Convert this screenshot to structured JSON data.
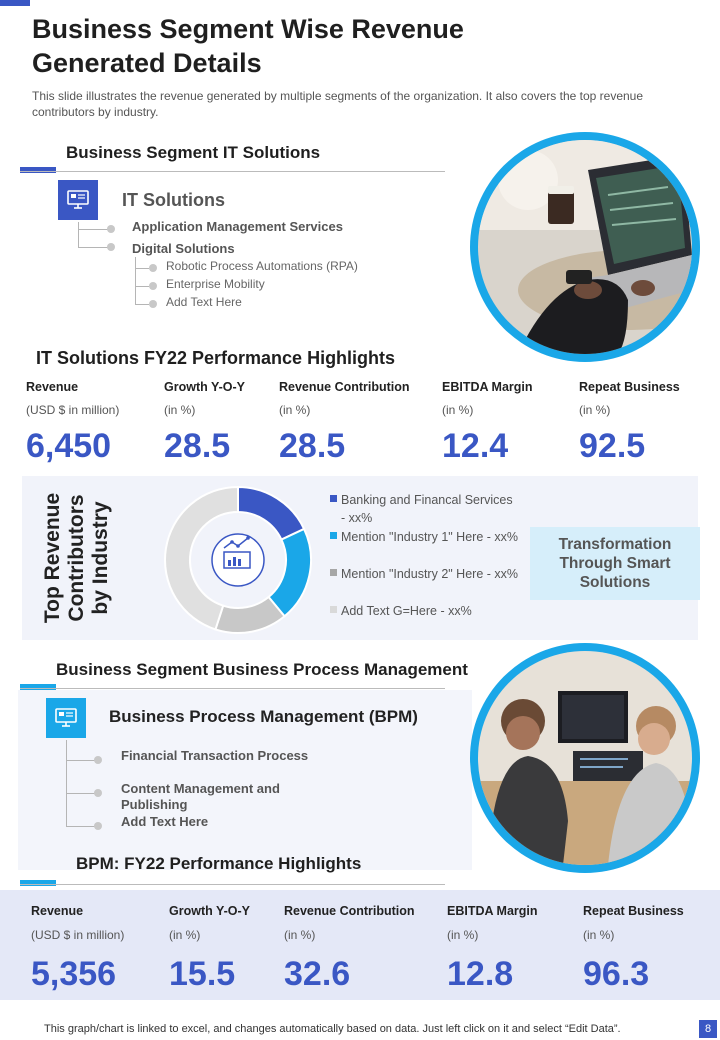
{
  "header": {
    "title": "Business Segment Wise Revenue Generated Details",
    "subtitle": "This slide illustrates the revenue generated by multiple segments of the organization. It also covers the top revenue contributors by industry."
  },
  "it_section": {
    "heading": "Business Segment  IT Solutions",
    "title": "IT Solutions",
    "item1": "Application Management Services",
    "item2": "Digital Solutions",
    "sub1": "Robotic Process Automations (RPA)",
    "sub2": "Enterprise Mobility",
    "sub3": "Add Text Here",
    "icon": "monitor-icon"
  },
  "it_perf": {
    "heading": "IT Solutions  FY22 Performance  Highlights",
    "metrics": [
      {
        "label": "Revenue",
        "unit": "(USD $ in million)",
        "value": "6,450"
      },
      {
        "label": "Growth Y-O-Y",
        "unit": "(in %)",
        "value": "28.5"
      },
      {
        "label": "Revenue Contribution",
        "unit": "(in %)",
        "value": "28.5"
      },
      {
        "label": "EBITDA Margin",
        "unit": "(in %)",
        "value": "12.4"
      },
      {
        "label": "Repeat Business",
        "unit": "(in %)",
        "value": "92.5"
      }
    ]
  },
  "contributors": {
    "title_line1": "Top Revenue",
    "title_line2": "Contributors",
    "title_line3": "by Industry",
    "legend": [
      {
        "label": "Banking and Financal Services - xx%",
        "color": "#3a57c4"
      },
      {
        "label": "Mention \"Industry 1\" Here - xx%",
        "color": "#1aa7e8"
      },
      {
        "label": "Mention \"Industry 2\" Here - xx%",
        "color": "#a6a6a6"
      },
      {
        "label": "Add Text G=Here - xx%",
        "color": "#d9d9d9"
      }
    ],
    "callout": "Transformation Through Smart Solutions"
  },
  "chart_data": {
    "type": "pie",
    "categories": [
      "Banking and Financal Services",
      "Mention \"Industry 1\" Here",
      "Mention \"Industry 2\" Here",
      "Add Text G=Here"
    ],
    "values": [
      18,
      21,
      16,
      45
    ],
    "colors": [
      "#3a57c4",
      "#1aa7e8",
      "#c8c8c8",
      "#e0e0e0"
    ],
    "hole": true
  },
  "bpm_section": {
    "heading": "Business Segment Business Process Management",
    "title": "Business Process Management (BPM)",
    "item1": "Financial Transaction Process",
    "item2": "Content Management and Publishing",
    "item3": "Add Text Here",
    "icon": "monitor-icon"
  },
  "bpm_perf": {
    "heading": "BPM: FY22 Performance Highlights",
    "metrics": [
      {
        "label": "Revenue",
        "unit": "(USD $ in million)",
        "value": "5,356"
      },
      {
        "label": "Growth Y-O-Y",
        "unit": "(in %)",
        "value": "15.5"
      },
      {
        "label": "Revenue Contribution",
        "unit": "(in %)",
        "value": "32.6"
      },
      {
        "label": "EBITDA Margin",
        "unit": "(in %)",
        "value": "12.8"
      },
      {
        "label": "Repeat Business",
        "unit": "(in %)",
        "value": "96.3"
      }
    ]
  },
  "footer": {
    "note": "This graph/chart is linked to excel, and changes automatically based on data. Just left click on it and select “Edit Data”.",
    "page": "8"
  },
  "colors": {
    "accent_blue": "#3a57c4",
    "accent_cyan": "#1aa7e8",
    "callout_bg": "#d6eefa"
  }
}
